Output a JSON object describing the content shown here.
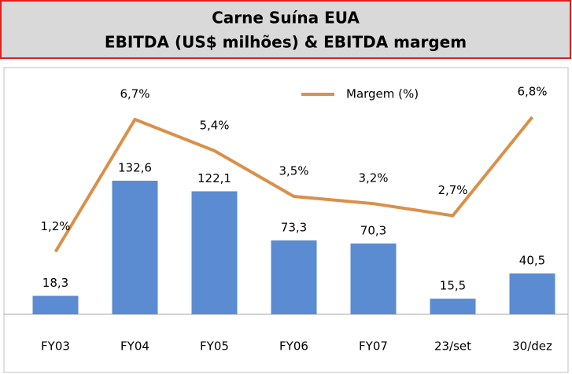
{
  "chart_data": {
    "type": "bar_line",
    "title": "Carne Suína EUA",
    "subtitle": "EBITDA (US$ milhões) & EBITDA margem",
    "categories": [
      "FY03",
      "FY04",
      "FY05",
      "FY06",
      "FY07",
      "23/set",
      "30/dez"
    ],
    "series": [
      {
        "name": "EBITDA",
        "type": "bar",
        "color": "#5b8bd0",
        "values": [
          18.3,
          132.6,
          122.1,
          73.3,
          70.3,
          15.5,
          40.5
        ],
        "value_labels": [
          "18,3",
          "132,6",
          "122,1",
          "73,3",
          "70,3",
          "15,5",
          "40,5"
        ]
      },
      {
        "name": "Margem (%)",
        "type": "line",
        "axis": "y2",
        "color": "#d9904a",
        "values": [
          1.2,
          6.7,
          5.4,
          3.5,
          3.2,
          2.7,
          6.8
        ],
        "value_labels": [
          "1,2%",
          "6,7%",
          "5,4%",
          "3,5%",
          "3,2%",
          "2,7%",
          "6,8%"
        ]
      }
    ],
    "ylim": [
      0,
      234
    ],
    "y2lim": [
      -1.4,
      8.4
    ],
    "legend": "top",
    "legend_series": [
      1
    ]
  }
}
